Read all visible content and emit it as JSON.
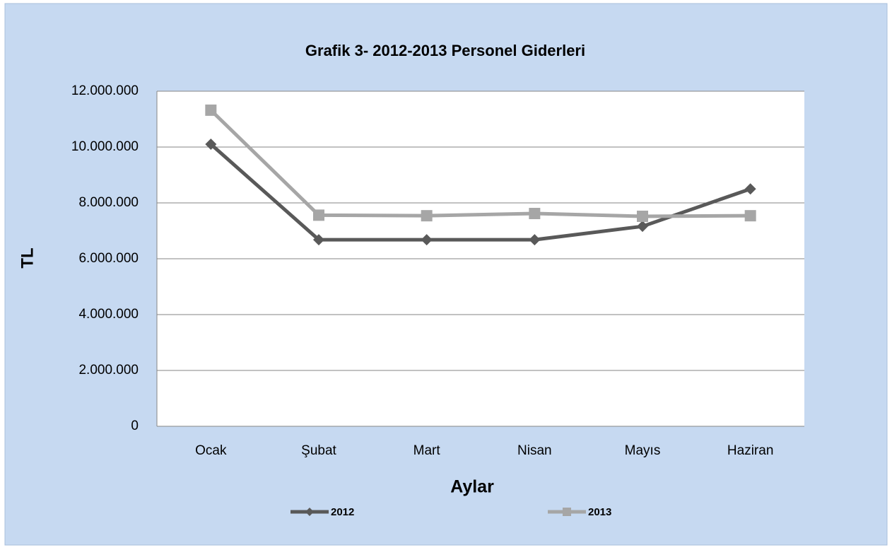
{
  "chart_data": {
    "type": "line",
    "title": "Grafik 3- 2012-2013 Personel Giderleri",
    "x_label": "Aylar",
    "y_label": "TL",
    "categories": [
      "Ocak",
      "Şubat",
      "Mart",
      "Nisan",
      "Mayıs",
      "Haziran"
    ],
    "series": [
      {
        "name": "2012",
        "color": "#595959",
        "marker": "diamond",
        "values": [
          10100000,
          6680000,
          6680000,
          6680000,
          7160000,
          8500000
        ]
      },
      {
        "name": "2013",
        "color": "#a6a6a6",
        "marker": "square",
        "values": [
          11320000,
          7560000,
          7540000,
          7620000,
          7520000,
          7540000
        ]
      }
    ],
    "ylim": [
      0,
      12000000
    ],
    "yticks": [
      0,
      {
        "value": 2000000,
        "label": "2.000.000"
      },
      {
        "value": 4000000,
        "label": "4.000.000"
      },
      {
        "value": 6000000,
        "label": "6.000.000"
      },
      {
        "value": 8000000,
        "label": "8.000.000"
      },
      {
        "value": 10000000,
        "label": "10.000.000"
      },
      {
        "value": 12000000,
        "label": "12.000.000"
      }
    ],
    "grid": true,
    "legend": "bottom"
  }
}
